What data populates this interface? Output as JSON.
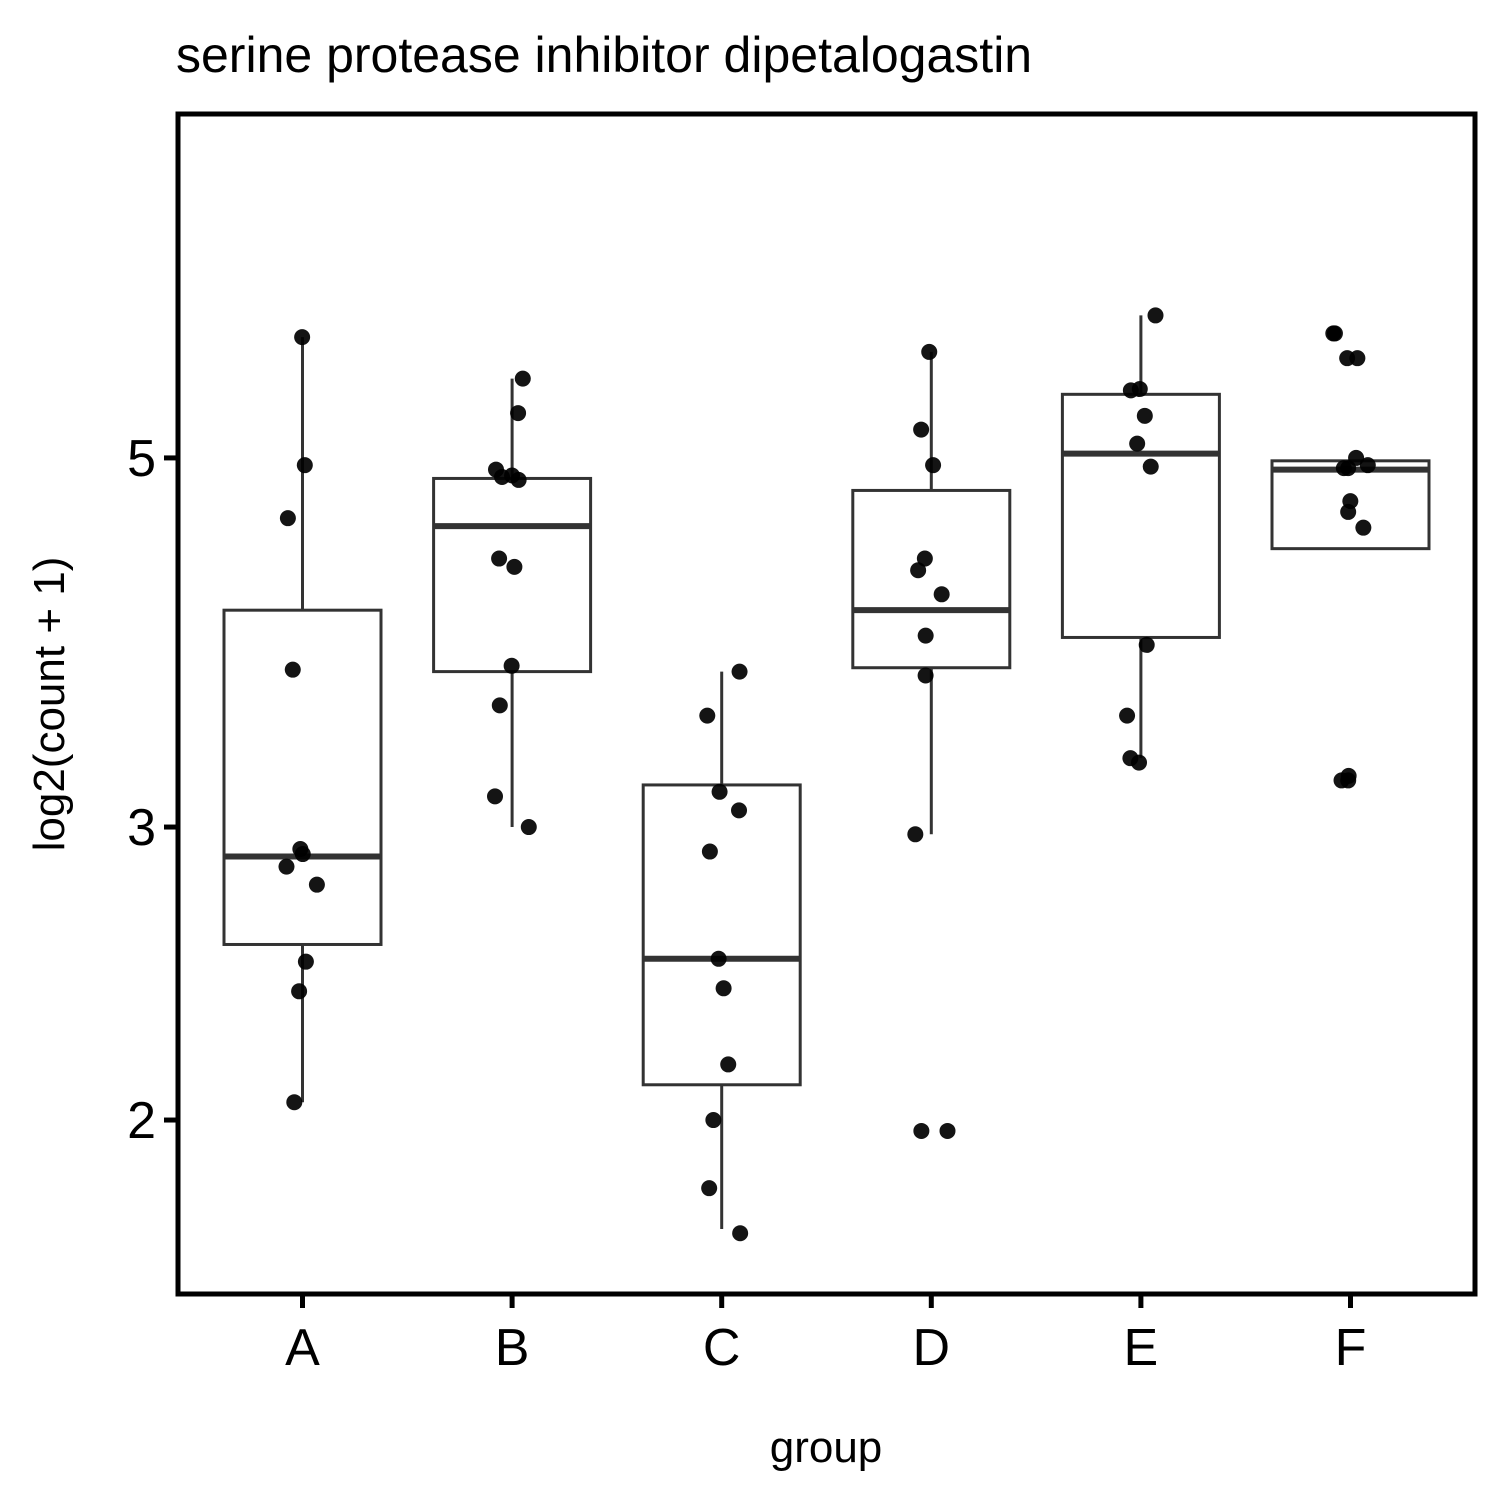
{
  "chart_data": {
    "type": "box",
    "title": "serine protease inhibitor dipetalogastin",
    "xlabel": "group",
    "ylabel": "log2(count + 1)",
    "y_scale": "log",
    "ylim": [
      1.6,
      6.25
    ],
    "y_ticks": [
      2,
      3,
      5
    ],
    "grid": false,
    "legend": "none",
    "colors": {
      "box_stroke": "#333333",
      "point": "#000000",
      "frame": "#000000",
      "background": "#ffffff"
    },
    "categories": [
      "A",
      "B",
      "C",
      "D",
      "E",
      "F"
    ],
    "boxes": [
      {
        "group": "A",
        "whisker_low": 2.05,
        "q1": 2.55,
        "median": 2.88,
        "q3": 4.05,
        "whisker_high": 5.91
      },
      {
        "group": "B",
        "whisker_low": 3.0,
        "q1": 3.72,
        "median": 4.55,
        "q3": 4.86,
        "whisker_high": 5.58
      },
      {
        "group": "C",
        "whisker_low": 1.72,
        "q1": 2.1,
        "median": 2.5,
        "q3": 3.18,
        "whisker_high": 3.72
      },
      {
        "group": "D",
        "whisker_low": 2.97,
        "q1": 3.74,
        "median": 4.05,
        "q3": 4.78,
        "whisker_high": 5.79
      },
      {
        "group": "E",
        "whisker_low": 3.3,
        "q1": 3.9,
        "median": 5.03,
        "q3": 5.46,
        "whisker_high": 6.09
      },
      {
        "group": "F",
        "whisker_low": 4.41,
        "q1": 4.41,
        "median": 4.92,
        "q3": 4.98,
        "whisker_high": 4.98
      }
    ],
    "points": [
      {
        "group": "A",
        "values": [
          5.91,
          4.95,
          4.6,
          3.73,
          2.91,
          2.89,
          2.84,
          2.77,
          2.49,
          2.39,
          2.05
        ]
      },
      {
        "group": "B",
        "values": [
          5.58,
          5.32,
          4.92,
          4.88,
          4.87,
          4.85,
          4.35,
          4.3,
          3.75,
          3.55,
          3.13,
          3.0
        ]
      },
      {
        "group": "C",
        "values": [
          3.72,
          3.5,
          3.15,
          3.07,
          2.9,
          2.5,
          2.4,
          2.16,
          2.0,
          1.82,
          1.71
        ]
      },
      {
        "group": "D",
        "values": [
          5.79,
          5.2,
          4.95,
          4.35,
          4.28,
          4.14,
          3.91,
          3.7,
          2.97,
          1.97,
          1.97
        ]
      },
      {
        "group": "E",
        "values": [
          6.09,
          5.5,
          5.49,
          5.3,
          5.1,
          4.94,
          3.86,
          3.5,
          3.3,
          3.28
        ]
      },
      {
        "group": "F",
        "values": [
          5.94,
          5.94,
          5.74,
          5.74,
          5.0,
          4.95,
          4.93,
          4.93,
          4.71,
          4.64,
          4.54,
          3.22,
          3.2,
          3.2
        ]
      }
    ]
  }
}
